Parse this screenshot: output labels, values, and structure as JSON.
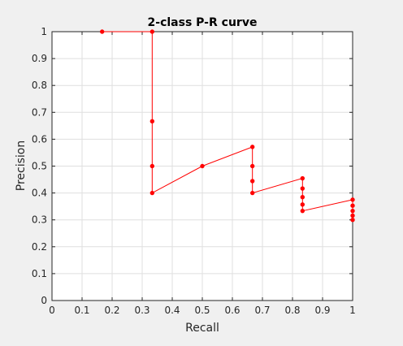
{
  "chart_data": {
    "type": "line",
    "title": "2-class P-R curve",
    "xlabel": "Recall",
    "ylabel": "Precision",
    "xlim": [
      0,
      1
    ],
    "ylim": [
      0,
      1
    ],
    "xticks": [
      "0",
      "0.1",
      "0.2",
      "0.3",
      "0.4",
      "0.5",
      "0.6",
      "0.7",
      "0.8",
      "0.9",
      "1"
    ],
    "yticks": [
      "0",
      "0.1",
      "0.2",
      "0.3",
      "0.4",
      "0.5",
      "0.6",
      "0.7",
      "0.8",
      "0.9",
      "1"
    ],
    "grid": true,
    "legend": "none",
    "series": [
      {
        "color": "#ff0000",
        "marker": "dot",
        "x": [
          0.1667,
          0.3333,
          0.3333,
          0.3333,
          0.3333,
          0.5,
          0.6667,
          0.6667,
          0.6667,
          0.6667,
          0.8333,
          0.8333,
          0.8333,
          0.8333,
          0.8333,
          1.0,
          1.0,
          1.0,
          1.0,
          1.0
        ],
        "y": [
          1.0,
          1.0,
          0.6667,
          0.5,
          0.4,
          0.5,
          0.5714,
          0.5,
          0.4444,
          0.4,
          0.4545,
          0.4167,
          0.3846,
          0.3571,
          0.3333,
          0.375,
          0.3529,
          0.3333,
          0.3158,
          0.3
        ]
      }
    ]
  }
}
